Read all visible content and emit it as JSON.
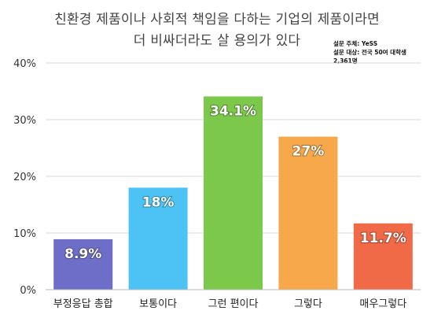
{
  "chart_data": {
    "type": "bar",
    "title_lines": [
      "친환경 제품이나 사회적 책임을 다하는 기업의 제품이라면",
      "더 비싸더라도 살 용의가 있다"
    ],
    "source_notes": [
      "설문 주체: YeSS",
      "설문 대상: 전국 50여 대학생",
      "2,361명"
    ],
    "categories": [
      "부정응답 총합",
      "보통이다",
      "그런 편이다",
      "그렇다",
      "매우그렇다"
    ],
    "values": [
      8.9,
      18,
      34.1,
      27,
      11.7
    ],
    "value_labels": [
      "8.9%",
      "18%",
      "34.1%",
      "27%",
      "11.7%"
    ],
    "colors": [
      "#6e6ec8",
      "#4dc3f5",
      "#7cc84a",
      "#f7a84a",
      "#f06a48"
    ],
    "ylim": [
      0,
      40
    ],
    "y_ticks": [
      0,
      10,
      20,
      30,
      40
    ],
    "y_tick_labels": [
      "0%",
      "10%",
      "20%",
      "30%",
      "40%"
    ],
    "grid": true,
    "grid_color": "#d9d9d9"
  }
}
